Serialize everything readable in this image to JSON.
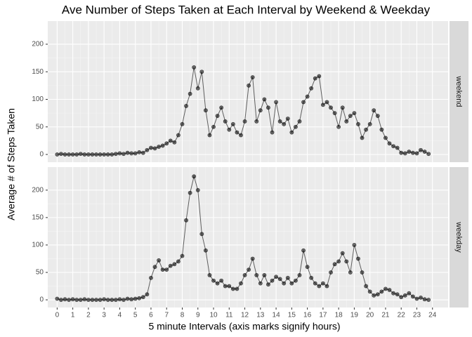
{
  "chart_data": {
    "type": "line",
    "facet": true,
    "title": "Ave Number of Steps Taken at Each Interval by Weekend & Weekday",
    "x_label": "5 minute Intervals (axis marks signify hours)",
    "y_label": "Average # of Steps Taken",
    "x": [
      0,
      0.25,
      0.5,
      0.75,
      1,
      1.25,
      1.5,
      1.75,
      2,
      2.25,
      2.5,
      2.75,
      3,
      3.25,
      3.5,
      3.75,
      4,
      4.25,
      4.5,
      4.75,
      5,
      5.25,
      5.5,
      5.75,
      6,
      6.25,
      6.5,
      6.75,
      7,
      7.25,
      7.5,
      7.75,
      8,
      8.25,
      8.5,
      8.75,
      9,
      9.25,
      9.5,
      9.75,
      10,
      10.25,
      10.5,
      10.75,
      11,
      11.25,
      11.5,
      11.75,
      12,
      12.25,
      12.5,
      12.75,
      13,
      13.25,
      13.5,
      13.75,
      14,
      14.25,
      14.5,
      14.75,
      15,
      15.25,
      15.5,
      15.75,
      16,
      16.25,
      16.5,
      16.75,
      17,
      17.25,
      17.5,
      17.75,
      18,
      18.25,
      18.5,
      18.75,
      19,
      19.25,
      19.5,
      19.75,
      20,
      20.25,
      20.5,
      20.75,
      21,
      21.25,
      21.5,
      21.75,
      22,
      22.25,
      22.5,
      22.75,
      23,
      23.25,
      23.5,
      23.75
    ],
    "xlim": [
      -0.6,
      25
    ],
    "xticks": [
      0,
      1,
      2,
      3,
      4,
      5,
      6,
      7,
      8,
      9,
      10,
      11,
      12,
      13,
      14,
      15,
      16,
      17,
      18,
      19,
      20,
      21,
      22,
      23,
      24
    ],
    "ylim": [
      -14,
      242
    ],
    "yticks": [
      0,
      50,
      100,
      150,
      200
    ],
    "grid": true,
    "series": [
      {
        "name": "weekend",
        "color": "#000000",
        "values": [
          0,
          1,
          0,
          0,
          0,
          0,
          1,
          0,
          0,
          0,
          0,
          0,
          0,
          0,
          0,
          1,
          2,
          1,
          3,
          2,
          2,
          4,
          3,
          8,
          12,
          11,
          14,
          16,
          20,
          25,
          22,
          35,
          55,
          88,
          110,
          158,
          120,
          150,
          80,
          35,
          50,
          70,
          85,
          60,
          45,
          55,
          40,
          35,
          60,
          125,
          140,
          60,
          80,
          100,
          85,
          40,
          95,
          60,
          55,
          65,
          40,
          50,
          60,
          95,
          105,
          120,
          138,
          142,
          90,
          95,
          85,
          75,
          50,
          85,
          60,
          70,
          75,
          55,
          30,
          45,
          55,
          80,
          70,
          45,
          30,
          20,
          15,
          12,
          3,
          2,
          5,
          3,
          2,
          8,
          5,
          1
        ]
      },
      {
        "name": "weekday",
        "color": "#000000",
        "values": [
          2,
          0,
          1,
          0,
          1,
          0,
          0,
          1,
          0,
          0,
          0,
          0,
          1,
          0,
          0,
          0,
          1,
          0,
          2,
          1,
          2,
          3,
          5,
          10,
          40,
          60,
          72,
          55,
          55,
          62,
          65,
          70,
          80,
          145,
          195,
          225,
          200,
          120,
          90,
          45,
          35,
          30,
          35,
          25,
          25,
          20,
          20,
          30,
          45,
          55,
          75,
          45,
          30,
          45,
          28,
          35,
          42,
          38,
          30,
          40,
          30,
          35,
          45,
          90,
          60,
          40,
          30,
          25,
          30,
          25,
          50,
          65,
          70,
          85,
          70,
          50,
          100,
          75,
          50,
          25,
          15,
          8,
          10,
          15,
          20,
          18,
          12,
          10,
          5,
          8,
          12,
          6,
          2,
          4,
          1,
          0
        ]
      }
    ]
  }
}
